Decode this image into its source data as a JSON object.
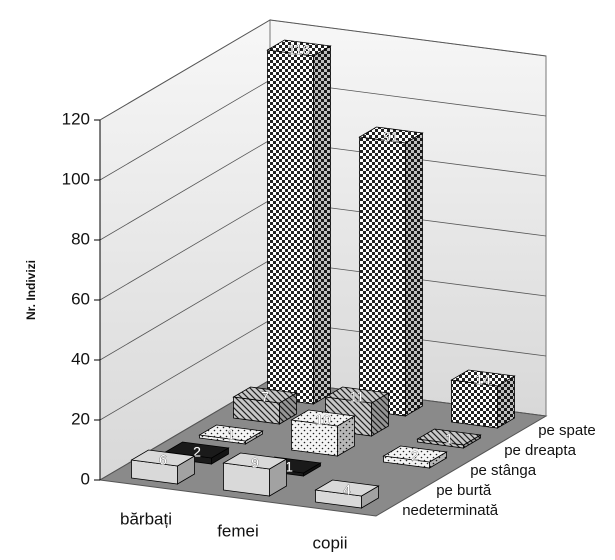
{
  "chart_data": {
    "type": "bar3d",
    "y_label": "Nr. Indivizi",
    "categories": [
      "bărbați",
      "femei",
      "copii"
    ],
    "series": [
      {
        "name": "nedeterminată",
        "color": "#d9d9d9",
        "values": [
          6,
          9,
          4
        ]
      },
      {
        "name": "pe burtă",
        "color": "#1a1a1a",
        "values": [
          2,
          1,
          null
        ]
      },
      {
        "name": "pe stânga",
        "color": "#f4f4f4",
        "values": [
          1,
          10,
          2
        ]
      },
      {
        "name": "pe dreapta",
        "color": "#c8c8c8",
        "values": [
          7,
          11,
          1
        ]
      },
      {
        "name": "pe spate",
        "color": "#ffffff",
        "values": [
          116,
          91,
          14
        ]
      }
    ],
    "ylim": [
      0,
      120
    ],
    "yticks": [
      0,
      20,
      40,
      60,
      80,
      100,
      120
    ],
    "grid": true
  }
}
